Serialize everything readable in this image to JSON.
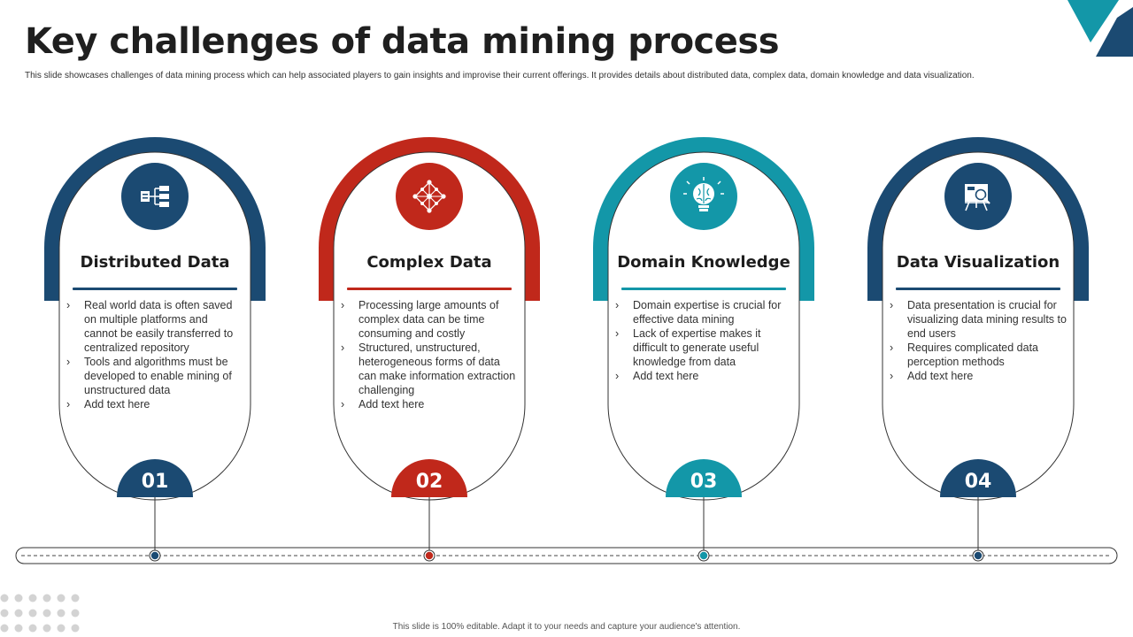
{
  "title": "Key challenges of data mining process",
  "subtitle": "This slide showcases challenges of data mining process which can help associated players to gain insights and improvise their current offerings. It provides details about distributed data, complex data, domain knowledge and data visualization.",
  "footer": "This slide is 100% editable. Adapt it to your needs and capture your audience's attention.",
  "colors": {
    "navy": "#1b4a72",
    "red": "#c0281b",
    "teal": "#1397a8"
  },
  "cards": [
    {
      "heading": "Distributed Data",
      "number": "01",
      "icon": "data-hierarchy-icon",
      "color": "#1b4a72",
      "bullets": [
        "Real world data is often saved on multiple platforms and cannot be easily transferred to centralized repository",
        "Tools and algorithms must be developed to enable mining of unstructured data",
        "Add text here"
      ]
    },
    {
      "heading": "Complex Data",
      "number": "02",
      "icon": "network-nodes-icon",
      "color": "#c0281b",
      "bullets": [
        "Processing large amounts of complex data can be time consuming and costly",
        "Structured, unstructured, heterogeneous forms of data can make information extraction challenging",
        "Add text here"
      ]
    },
    {
      "heading": "Domain Knowledge",
      "number": "03",
      "icon": "brain-bulb-icon",
      "color": "#1397a8",
      "bullets": [
        "Domain expertise is crucial for effective data mining",
        "Lack of expertise makes it difficult to generate useful knowledge from data",
        "Add text here"
      ]
    },
    {
      "heading": "Data Visualization",
      "number": "04",
      "icon": "presentation-board-icon",
      "color": "#1b4a72",
      "bullets": [
        "Data presentation is crucial for visualizing data mining results to end users",
        "Requires complicated data perception methods",
        "Add text here"
      ]
    }
  ]
}
